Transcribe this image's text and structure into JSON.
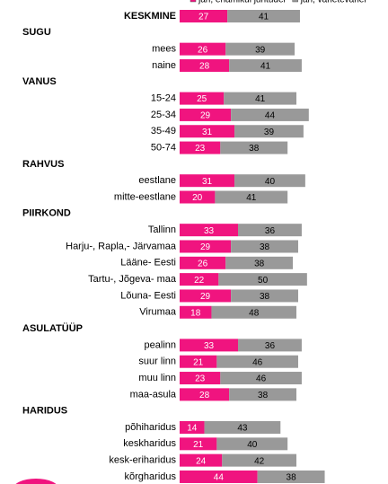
{
  "chart_data": {
    "type": "stacked-bar-horizontal",
    "categories": [
      "KESKMINE",
      "SUGU",
      "mees",
      "naine",
      "VANUS",
      "15-24",
      "25-34",
      "35-49",
      "50-74",
      "RAHVUS",
      "eestlane",
      "mitte-eestlane",
      "PIIRKOND",
      "Tallinn",
      "Harju-, Rapla,- Järvamaa",
      "Lääne- Eesti",
      "Tartu-, Jõgeva- maa",
      "Lõuna- Eesti",
      "Virumaa",
      "ASULATÜÜP",
      "pealinn",
      "suur linn",
      "muu linn",
      "maa-asula",
      "HARIDUS",
      "põhiharidus",
      "keskharidus",
      "kesk-eriharidus",
      "kõrgharidus"
    ],
    "series": [
      {
        "name": "jah, enamikul juhtudel",
        "color": "#f0147f",
        "values": [
          27,
          null,
          26,
          28,
          null,
          25,
          29,
          31,
          23,
          null,
          31,
          20,
          null,
          33,
          29,
          26,
          22,
          29,
          18,
          null,
          33,
          21,
          23,
          28,
          null,
          14,
          21,
          24,
          44
        ]
      },
      {
        "name": "jah, vahetevahel",
        "color": "#999999",
        "values": [
          41,
          null,
          39,
          41,
          null,
          41,
          44,
          39,
          38,
          null,
          40,
          41,
          null,
          36,
          38,
          38,
          50,
          38,
          48,
          null,
          36,
          46,
          46,
          38,
          null,
          43,
          40,
          42,
          38
        ]
      }
    ]
  }
}
